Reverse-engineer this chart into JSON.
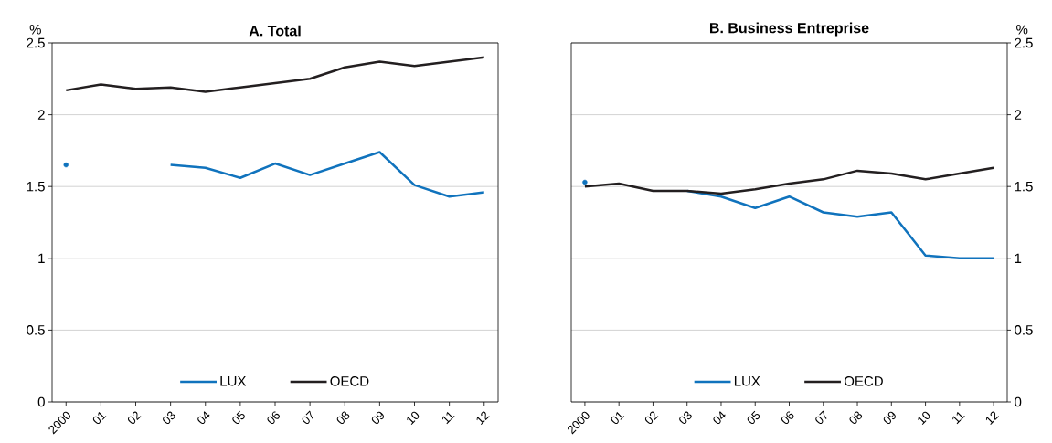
{
  "chart_data": [
    {
      "type": "line",
      "title": "A. Total",
      "ylabel": "%",
      "categories": [
        "2000",
        "01",
        "02",
        "03",
        "04",
        "05",
        "06",
        "07",
        "08",
        "09",
        "10",
        "11",
        "12"
      ],
      "series": [
        {
          "name": "LUX",
          "color": "#1073bd",
          "values": [
            1.65,
            null,
            null,
            1.65,
            1.63,
            1.56,
            1.66,
            1.58,
            1.66,
            1.74,
            1.51,
            1.43,
            1.46
          ]
        },
        {
          "name": "OECD",
          "color": "#231f20",
          "values": [
            2.17,
            2.21,
            2.18,
            2.19,
            2.16,
            2.19,
            2.22,
            2.25,
            2.33,
            2.37,
            2.34,
            2.37,
            2.4
          ]
        }
      ],
      "ylim": [
        0,
        2.5
      ],
      "yticks": [
        0,
        0.5,
        1,
        1.5,
        2,
        2.5
      ],
      "grid": "y",
      "legend": "bottom"
    },
    {
      "type": "line",
      "title": "B. Business Entreprise",
      "ylabel": "%",
      "categories": [
        "2000",
        "01",
        "02",
        "03",
        "04",
        "05",
        "06",
        "07",
        "08",
        "09",
        "10",
        "11",
        "12"
      ],
      "series": [
        {
          "name": "LUX",
          "color": "#1073bd",
          "values": [
            1.53,
            null,
            null,
            1.47,
            1.43,
            1.35,
            1.43,
            1.32,
            1.29,
            1.32,
            1.02,
            1.0,
            1.0
          ]
        },
        {
          "name": "OECD",
          "color": "#231f20",
          "values": [
            1.5,
            1.52,
            1.47,
            1.47,
            1.45,
            1.48,
            1.52,
            1.55,
            1.61,
            1.59,
            1.55,
            1.59,
            1.63
          ]
        }
      ],
      "ylim": [
        0,
        2.5
      ],
      "yticks": [
        0,
        0.5,
        1,
        1.5,
        2,
        2.5
      ],
      "grid": "y",
      "legend": "bottom"
    }
  ]
}
